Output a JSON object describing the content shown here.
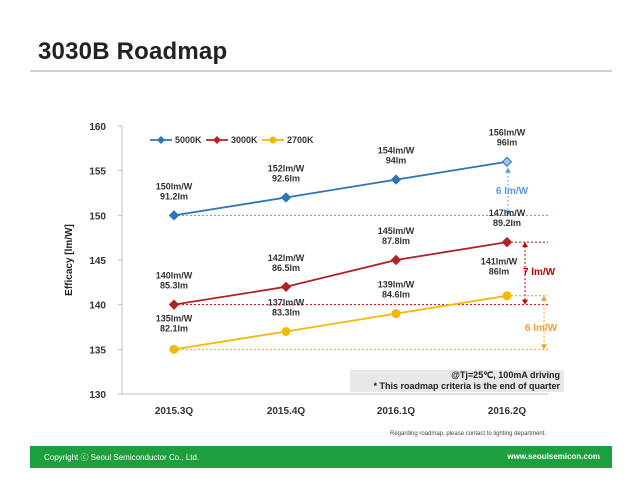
{
  "slide": {
    "title": "3030B Roadmap",
    "footnote": "Regarding roadmap, please contact to lighting department.",
    "footer_left": "Copyright ⓒ Seoul Semiconductor Co., Ltd.",
    "footer_right": "www.seoulsemicon.com"
  },
  "chart_data": {
    "type": "line",
    "title": "",
    "xlabel": "",
    "ylabel": "Efficacy [lm/W]",
    "categories": [
      "2015.3Q",
      "2015.4Q",
      "2016.1Q",
      "2016.2Q"
    ],
    "ylim": [
      130,
      160
    ],
    "yticks": [
      130,
      135,
      140,
      145,
      150,
      155,
      160
    ],
    "grid": false,
    "legend_position": "top-left",
    "series": [
      {
        "name": "5000K",
        "color": "#2e75b6",
        "marker": "diamond",
        "values": [
          150,
          152,
          154,
          156
        ],
        "labels": [
          [
            "150lm/W",
            "91.2lm"
          ],
          [
            "152lm/W",
            "92.6lm"
          ],
          [
            "154lm/W",
            "94lm"
          ],
          [
            "156lm/W",
            "96lm"
          ]
        ],
        "label_side": "above"
      },
      {
        "name": "3000K",
        "color": "#b22222",
        "marker": "diamond",
        "values": [
          140,
          142,
          145,
          147
        ],
        "labels": [
          [
            "140lm/W",
            "85.3lm"
          ],
          [
            "142lm/W",
            "86.5lm"
          ],
          [
            "145lm/W",
            "87.8lm"
          ],
          [
            "147lm/W",
            "89.2lm"
          ]
        ],
        "label_side": "above"
      },
      {
        "name": "2700K",
        "color": "#f5b800",
        "marker": "circle",
        "values": [
          135,
          137,
          139,
          141
        ],
        "labels": [
          [
            "135lm/W",
            "82.1lm"
          ],
          [
            "137lm/W",
            "83.3lm"
          ],
          [
            "139lm/W",
            "84.6lm"
          ],
          [
            "141lm/W",
            "86lm"
          ]
        ],
        "label_side": "above"
      }
    ],
    "gains": [
      {
        "text": "6 lm/W",
        "color": "#5b9bd5",
        "from": 150,
        "to": 156
      },
      {
        "text": "7 lm/W",
        "color": "#c00000",
        "from": 140,
        "to": 147
      },
      {
        "text": "6 lm/W",
        "color": "#f0a030",
        "from": 135,
        "to": 141
      }
    ],
    "annotations": [
      "@Tj=25℃, 100mA driving",
      "* This roadmap criteria is the end of quarter"
    ]
  }
}
